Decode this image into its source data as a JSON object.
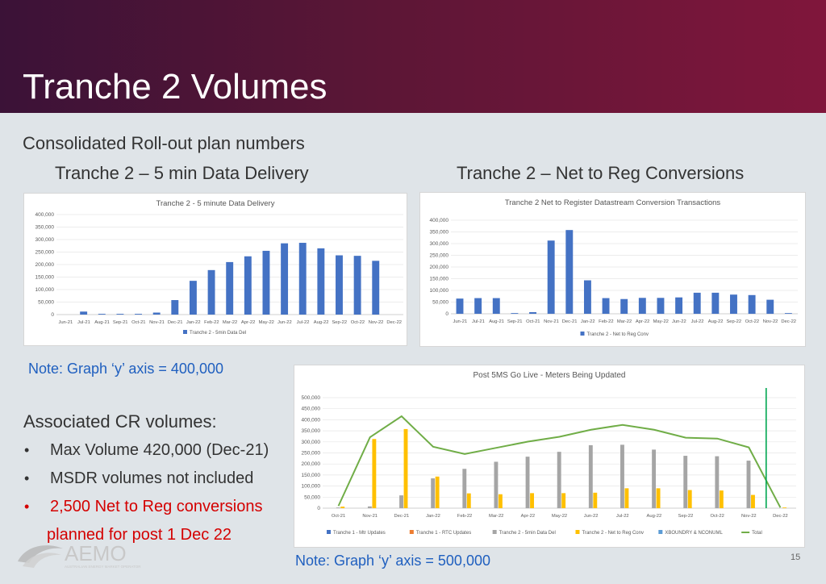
{
  "slide": {
    "title": "Tranche 2 Volumes",
    "subtitle": "Consolidated Roll-out plan numbers",
    "left_heading": "Tranche 2 – 5 min Data Delivery",
    "right_heading": "Tranche 2 – Net to Reg Conversions",
    "note_left": "Note: Graph ‘y’ axis = 400,000",
    "note_bottom": "Note: Graph ‘y’ axis = 500,000",
    "cr_heading": "Associated CR volumes:",
    "bullets": [
      "Max Volume 420,000 (Dec-21)",
      "MSDR volumes not included",
      "2,500 Net to Reg conversions",
      "planned for post 1 Dec 22"
    ],
    "page_number": "15",
    "logo_text": "AEMO",
    "logo_subtext": "AUSTRALIAN ENERGY MARKET OPERATOR"
  },
  "colors": {
    "header_start": "#3b1237",
    "header_end": "#80163b",
    "note_blue": "#1f5fbf",
    "bullet_red": "#d40000",
    "bar_blue": "#4472c4",
    "series_grey": "#a5a5a5",
    "series_yellow": "#ffc000",
    "series_orange": "#ed7d31",
    "series_green": "#70ad47",
    "vline_green": "#00a651"
  },
  "chart_data": [
    {
      "type": "bar",
      "title": "Tranche 2 - 5 minute Data Delivery",
      "categories": [
        "Jun-21",
        "Jul-21",
        "Aug-21",
        "Sep-21",
        "Oct-21",
        "Nov-21",
        "Dec-21",
        "Jan-22",
        "Feb-22",
        "Mar-22",
        "Apr-22",
        "May-22",
        "Jun-22",
        "Jul-22",
        "Aug-22",
        "Sep-22",
        "Oct-22",
        "Nov-22",
        "Dec-22"
      ],
      "series": [
        {
          "name": "Tranche 2 - 5min Data Del",
          "values": [
            0,
            12000,
            3000,
            3000,
            3000,
            8000,
            58000,
            135000,
            178000,
            210000,
            233000,
            255000,
            285000,
            287000,
            265000,
            237000,
            235000,
            215000,
            0
          ]
        }
      ],
      "ylim": [
        0,
        400000
      ],
      "yticks": [
        0,
        50000,
        100000,
        150000,
        200000,
        250000,
        300000,
        350000,
        400000
      ],
      "ytick_labels": [
        "0",
        "50,000",
        "100,000",
        "150,000",
        "200,000",
        "250,000",
        "300,000",
        "350,000",
        "400,000"
      ],
      "legend": "bottom",
      "grid": true
    },
    {
      "type": "bar",
      "title": "Tranche 2 Net to Register Datastream Conversion Transactions",
      "categories": [
        "Jun-21",
        "Jul-21",
        "Aug-21",
        "Sep-21",
        "Oct-21",
        "Nov-21",
        "Dec-21",
        "Jan-22",
        "Feb-22",
        "Mar-22",
        "Apr-22",
        "May-22",
        "Jun-22",
        "Jul-22",
        "Aug-22",
        "Sep-22",
        "Oct-22",
        "Nov-22",
        "Dec-22"
      ],
      "series": [
        {
          "name": "Tranche 2 - Net to Reg Conv",
          "values": [
            65000,
            67000,
            67000,
            3000,
            7000,
            313000,
            358000,
            143000,
            67000,
            63000,
            68000,
            68000,
            70000,
            90000,
            90000,
            82000,
            80000,
            60000,
            3000
          ]
        }
      ],
      "ylim": [
        0,
        400000
      ],
      "yticks": [
        0,
        50000,
        100000,
        150000,
        200000,
        250000,
        300000,
        350000,
        400000
      ],
      "ytick_labels": [
        "0",
        "50,000",
        "100,000",
        "150,000",
        "200,000",
        "250,000",
        "300,000",
        "350,000",
        "400,000"
      ],
      "legend": "bottom",
      "grid": true
    },
    {
      "type": "bar",
      "title": "Post 5MS Go Live - Meters Being Updated",
      "categories": [
        "Oct-21",
        "Nov-21",
        "Dec-21",
        "Jan-22",
        "Feb-22",
        "Mar-22",
        "Apr-22",
        "May-22",
        "Jun-22",
        "Jul-22",
        "Aug-22",
        "Sep-22",
        "Oct-22",
        "Nov-22",
        "Dec-22"
      ],
      "series": [
        {
          "name": "Tranche 1 - Mtr Updates",
          "values": [
            0,
            0,
            0,
            0,
            0,
            0,
            0,
            0,
            0,
            0,
            0,
            0,
            0,
            0,
            0
          ]
        },
        {
          "name": "Tranche 1 - RTC Updates",
          "values": [
            0,
            0,
            0,
            0,
            0,
            0,
            0,
            0,
            0,
            0,
            0,
            0,
            0,
            0,
            0
          ]
        },
        {
          "name": "Tranche 2 - 5min Data Del",
          "values": [
            3000,
            8000,
            58000,
            135000,
            178000,
            210000,
            233000,
            255000,
            285000,
            287000,
            265000,
            237000,
            235000,
            215000,
            0
          ]
        },
        {
          "name": "Tranche 2 - Net to Reg Conv",
          "values": [
            7000,
            313000,
            358000,
            143000,
            67000,
            63000,
            68000,
            68000,
            70000,
            90000,
            90000,
            82000,
            80000,
            60000,
            3000
          ]
        },
        {
          "name": "XBOUNDRY & NCONUML",
          "values": [
            0,
            0,
            0,
            0,
            0,
            0,
            0,
            0,
            0,
            0,
            0,
            0,
            0,
            0,
            0
          ]
        },
        {
          "name": "Total",
          "kind": "line",
          "values": [
            10000,
            321000,
            416000,
            278000,
            245000,
            273000,
            301000,
            323000,
            355000,
            377000,
            355000,
            319000,
            315000,
            275000,
            3000
          ]
        }
      ],
      "ylim": [
        0,
        500000
      ],
      "yticks": [
        0,
        50000,
        100000,
        150000,
        200000,
        250000,
        300000,
        350000,
        400000,
        450000,
        500000
      ],
      "ytick_labels": [
        "0",
        "50,000",
        "100,000",
        "150,000",
        "200,000",
        "250,000",
        "300,000",
        "350,000",
        "400,000",
        "450,000",
        "500,000"
      ],
      "legend": "bottom",
      "grid": true
    }
  ]
}
